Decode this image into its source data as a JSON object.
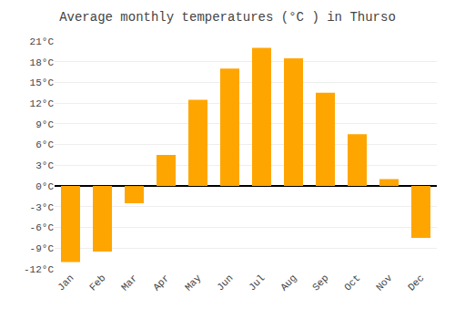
{
  "chart_data": {
    "type": "bar",
    "title": "Average monthly temperatures (°C ) in Thurso",
    "categories": [
      "Jan",
      "Feb",
      "Mar",
      "Apr",
      "May",
      "Jun",
      "Jul",
      "Aug",
      "Sep",
      "Oct",
      "Nov",
      "Dec"
    ],
    "values": [
      -11,
      -9.5,
      -2.5,
      4.5,
      12.5,
      17,
      20,
      18.5,
      13.5,
      7.5,
      1,
      -7.5
    ],
    "color": "#FFA500",
    "ylim": [
      -12,
      21
    ],
    "yticks": [
      {
        "value": -12,
        "label": "-12°C"
      },
      {
        "value": -9,
        "label": "-9°C"
      },
      {
        "value": -6,
        "label": "-6°C"
      },
      {
        "value": -3,
        "label": "-3°C"
      },
      {
        "value": 0,
        "label": "0°C"
      },
      {
        "value": 3,
        "label": "3°C"
      },
      {
        "value": 6,
        "label": "6°C"
      },
      {
        "value": 9,
        "label": "9°C"
      },
      {
        "value": 12,
        "label": "12°C"
      },
      {
        "value": 15,
        "label": "15°C"
      },
      {
        "value": 18,
        "label": "18°C"
      },
      {
        "value": 21,
        "label": "21°C"
      }
    ],
    "grid": true
  }
}
